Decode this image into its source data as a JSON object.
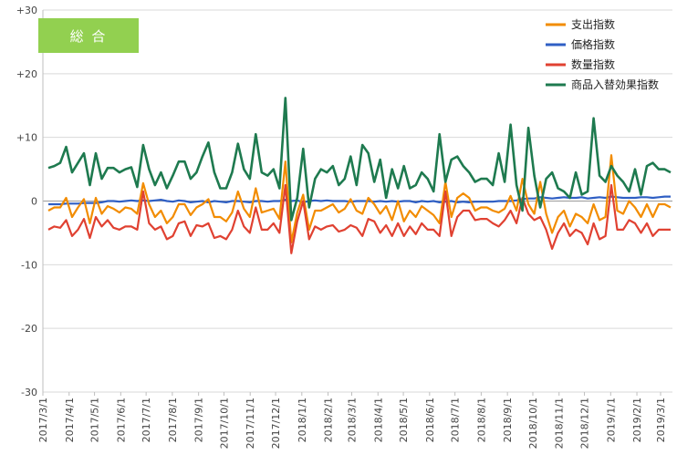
{
  "chart_data": {
    "type": "line",
    "title": "総 合",
    "badge_color": "#92d050",
    "ylim": [
      -30,
      30
    ],
    "yticks": [
      30,
      20,
      10,
      0,
      -10,
      -20,
      -30
    ],
    "ytick_labels": [
      "+30",
      "+20",
      "+10",
      "0",
      "-10",
      "-20",
      "-30"
    ],
    "grid": true,
    "legend_position": "top-right",
    "x_start": "2017/3/1",
    "x_end": "2019/3/15",
    "xtick_labels": [
      "2017/3/1",
      "2017/4/1",
      "2017/5/1",
      "2017/6/1",
      "2017/7/1",
      "2017/8/1",
      "2017/9/1",
      "2017/10/1",
      "2017/11/1",
      "2017/12/1",
      "2018/1/1",
      "2018/2/1",
      "2018/3/1",
      "2018/4/1",
      "2018/5/1",
      "2018/6/1",
      "2018/7/1",
      "2018/8/1",
      "2018/9/1",
      "2018/10/1",
      "2018/11/1",
      "2018/12/1",
      "2019/1/1",
      "2019/2/1",
      "2019/3/1"
    ],
    "series": [
      {
        "name": "支出指数",
        "color": "#f28c00",
        "values": [
          -1.5,
          -1.0,
          -1.0,
          0.5,
          -2.5,
          -1.0,
          0.3,
          -3.5,
          0.5,
          -2.0,
          -0.8,
          -1.2,
          -1.8,
          -1.0,
          -1.2,
          -2.0,
          2.8,
          -0.5,
          -2.5,
          -1.5,
          -3.5,
          -2.5,
          -0.5,
          -0.5,
          -2.2,
          -1.0,
          -0.5,
          0.3,
          -2.5,
          -2.5,
          -3.2,
          -1.8,
          1.5,
          -1.2,
          -2.5,
          2.0,
          -1.8,
          -1.5,
          -1.2,
          -2.8,
          6.2,
          -6.5,
          -1.8,
          1.0,
          -4.5,
          -1.5,
          -1.5,
          -1.0,
          -0.5,
          -1.8,
          -1.2,
          0.3,
          -1.5,
          -2.0,
          0.5,
          -0.5,
          -2.0,
          -0.8,
          -3.0,
          0.0,
          -3.2,
          -1.5,
          -2.5,
          -0.8,
          -1.5,
          -2.2,
          -3.5,
          3.0,
          -2.5,
          0.5,
          1.2,
          0.5,
          -1.5,
          -1.0,
          -1.0,
          -1.5,
          -1.8,
          -1.2,
          0.8,
          -1.5,
          3.5,
          -0.5,
          -2.0,
          3.0,
          -2.0,
          -5.0,
          -2.5,
          -1.5,
          -4.0,
          -2.0,
          -2.5,
          -3.5,
          -0.5,
          -3.0,
          -2.5,
          7.2,
          -1.5,
          -2.0,
          0.0,
          -1.0,
          -2.5,
          -0.5,
          -2.5,
          -0.5,
          -0.5,
          -1.0
        ]
      },
      {
        "name": "価格指数",
        "color": "#2f5fc4",
        "values": [
          -0.5,
          -0.5,
          -0.5,
          -0.4,
          -0.4,
          -0.4,
          -0.3,
          -0.3,
          -0.3,
          -0.2,
          0.0,
          0.0,
          -0.1,
          0.0,
          0.1,
          0.0,
          0.1,
          0.0,
          0.1,
          0.2,
          0.0,
          -0.1,
          0.1,
          0.0,
          -0.2,
          -0.1,
          0.0,
          -0.2,
          0.0,
          -0.1,
          -0.2,
          0.0,
          0.0,
          -0.1,
          -0.2,
          0.0,
          0.0,
          -0.1,
          0.0,
          0.0,
          0.2,
          0.0,
          0.1,
          -0.2,
          0.0,
          0.1,
          0.0,
          0.1,
          0.0,
          0.0,
          0.0,
          -0.1,
          0.0,
          0.0,
          0.0,
          -0.1,
          0.0,
          -0.1,
          0.0,
          -0.1,
          0.0,
          0.0,
          -0.2,
          0.0,
          -0.1,
          0.0,
          -0.2,
          -0.1,
          0.0,
          -0.2,
          -0.1,
          -0.2,
          -0.1,
          -0.1,
          -0.1,
          -0.1,
          0.0,
          0.0,
          0.0,
          0.1,
          0.3,
          0.4,
          0.4,
          0.6,
          0.5,
          0.4,
          0.5,
          0.6,
          0.5,
          0.5,
          0.6,
          0.4,
          0.5,
          0.6,
          0.5,
          0.7,
          0.6,
          0.5,
          0.5,
          0.5,
          0.6,
          0.6,
          0.5,
          0.6,
          0.7,
          0.7
        ]
      },
      {
        "name": "数量指数",
        "color": "#e04131",
        "values": [
          -4.5,
          -4.0,
          -4.2,
          -3.0,
          -5.5,
          -4.5,
          -2.8,
          -5.8,
          -2.5,
          -4.0,
          -3.0,
          -4.2,
          -4.5,
          -4.0,
          -4.0,
          -4.5,
          1.5,
          -3.5,
          -4.5,
          -4.0,
          -6.0,
          -5.5,
          -3.5,
          -3.2,
          -5.5,
          -3.8,
          -4.0,
          -3.5,
          -5.8,
          -5.5,
          -6.0,
          -4.5,
          -1.5,
          -4.0,
          -5.0,
          -1.0,
          -4.5,
          -4.5,
          -3.5,
          -5.0,
          2.5,
          -8.2,
          -3.2,
          0.0,
          -6.0,
          -4.0,
          -4.5,
          -4.0,
          -3.8,
          -4.8,
          -4.5,
          -3.8,
          -4.2,
          -5.5,
          -2.8,
          -3.2,
          -5.0,
          -3.8,
          -5.5,
          -3.5,
          -5.5,
          -4.0,
          -5.2,
          -3.5,
          -4.5,
          -4.5,
          -5.5,
          1.5,
          -5.5,
          -2.5,
          -1.5,
          -1.5,
          -3.0,
          -2.8,
          -2.8,
          -3.5,
          -4.0,
          -3.0,
          -1.5,
          -3.5,
          0.5,
          -2.0,
          -3.0,
          -2.5,
          -4.5,
          -7.5,
          -5.0,
          -3.5,
          -5.5,
          -4.5,
          -5.0,
          -6.8,
          -3.5,
          -6.0,
          -5.5,
          2.5,
          -4.5,
          -4.5,
          -3.0,
          -3.5,
          -5.0,
          -3.5,
          -5.5,
          -4.5,
          -4.5,
          -4.5
        ]
      },
      {
        "name": "商品入替効果指数",
        "color": "#1e7a4f",
        "values": [
          5.2,
          5.5,
          6.0,
          8.5,
          4.5,
          6.0,
          7.5,
          2.5,
          7.5,
          3.5,
          5.2,
          5.2,
          4.5,
          5.0,
          5.3,
          2.2,
          8.8,
          5.0,
          2.5,
          4.5,
          2.0,
          4.0,
          6.2,
          6.2,
          3.5,
          4.5,
          7.0,
          9.2,
          4.5,
          2.0,
          2.0,
          4.5,
          9.0,
          5.0,
          3.5,
          10.5,
          4.5,
          4.0,
          5.0,
          2.0,
          16.2,
          -3.0,
          0.5,
          8.2,
          -1.0,
          3.5,
          5.0,
          4.5,
          5.5,
          2.5,
          3.5,
          7.0,
          2.5,
          8.8,
          7.5,
          3.0,
          6.5,
          0.5,
          5.0,
          2.0,
          5.5,
          2.0,
          2.5,
          4.5,
          3.5,
          1.5,
          10.5,
          3.0,
          6.5,
          7.0,
          5.5,
          4.5,
          3.0,
          3.5,
          3.5,
          2.5,
          7.5,
          3.0,
          12.0,
          2.5,
          -1.5,
          11.5,
          4.0,
          -1.0,
          3.5,
          4.5,
          2.0,
          1.5,
          0.5,
          4.5,
          1.0,
          1.5,
          13.0,
          4.0,
          3.0,
          5.5,
          4.0,
          3.0,
          1.5,
          5.0,
          1.0,
          5.5,
          6.0,
          5.0,
          5.0,
          4.5
        ]
      }
    ]
  }
}
